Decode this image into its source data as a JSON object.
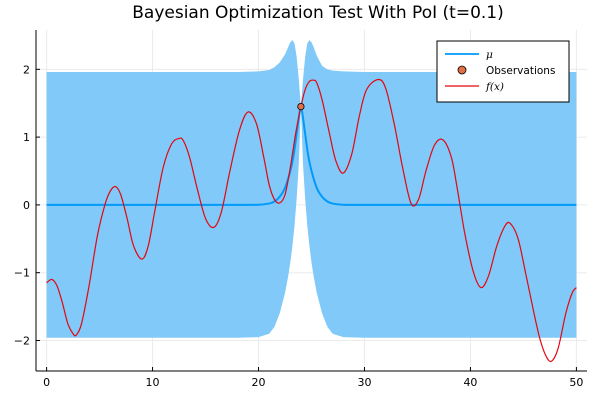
{
  "chart_data": {
    "type": "line",
    "title": "Bayesian Optimization Test With PoI (t=0.1)",
    "xlabel": "",
    "ylabel": "",
    "xlim": [
      -1,
      51
    ],
    "ylim": [
      -2.45,
      2.58
    ],
    "xticks": [
      0,
      10,
      20,
      30,
      40,
      50
    ],
    "yticks": [
      -2,
      -1,
      0,
      1,
      2
    ],
    "x_tick_labels": [
      "0",
      "10",
      "20",
      "30",
      "40",
      "50"
    ],
    "y_tick_labels": [
      "−2",
      "−1",
      "0",
      "1",
      "2"
    ],
    "grid": true,
    "legend_position": "top-right",
    "colors": {
      "band": "#80C9F8",
      "mean": "#009AFA",
      "observation": "#E36F47",
      "f": "#E5060E",
      "axis": "#000000",
      "grid": "#EBEBEB"
    },
    "band": {
      "x": [
        0,
        5,
        10,
        15,
        18,
        20,
        21,
        21.5,
        22,
        22.5,
        22.8,
        23,
        23.2,
        23.4,
        23.6,
        23.8,
        24,
        24.2,
        24.4,
        24.6,
        24.8,
        25,
        25.2,
        25.5,
        26,
        26.5,
        27,
        28,
        30,
        35,
        40,
        45,
        50
      ],
      "upper": [
        1.96,
        1.96,
        1.96,
        1.96,
        1.96,
        1.97,
        1.99,
        2.03,
        2.1,
        2.22,
        2.33,
        2.4,
        2.43,
        2.38,
        2.18,
        1.85,
        1.45,
        1.85,
        2.18,
        2.38,
        2.43,
        2.4,
        2.33,
        2.2,
        2.05,
        2.0,
        1.98,
        1.97,
        1.96,
        1.96,
        1.96,
        1.96,
        1.96
      ],
      "lower": [
        -1.96,
        -1.96,
        -1.96,
        -1.96,
        -1.96,
        -1.95,
        -1.9,
        -1.8,
        -1.6,
        -1.3,
        -1.05,
        -0.85,
        -0.6,
        -0.3,
        0.1,
        0.6,
        1.45,
        0.6,
        0.1,
        -0.3,
        -0.6,
        -0.85,
        -1.05,
        -1.3,
        -1.6,
        -1.8,
        -1.9,
        -1.95,
        -1.96,
        -1.96,
        -1.96,
        -1.96,
        -1.96
      ]
    },
    "series": [
      {
        "name": "μ",
        "x": [
          0,
          5,
          10,
          15,
          18,
          20,
          21,
          21.5,
          22,
          22.5,
          23,
          23.3,
          23.6,
          23.8,
          24,
          24.2,
          24.4,
          24.7,
          25,
          25.5,
          26,
          26.5,
          27,
          28,
          30,
          35,
          40,
          45,
          50
        ],
        "values": [
          0,
          0,
          0,
          0,
          0,
          0.003,
          0.02,
          0.05,
          0.12,
          0.25,
          0.5,
          0.72,
          1.05,
          1.28,
          1.45,
          1.28,
          1.05,
          0.72,
          0.5,
          0.25,
          0.12,
          0.05,
          0.02,
          0.003,
          0,
          0,
          0,
          0,
          0
        ]
      },
      {
        "name": "f(x)",
        "x": [
          0,
          0.5,
          1,
          1.5,
          2,
          2.5,
          2.8,
          3.3,
          4,
          4.8,
          5.5,
          6,
          6.5,
          7,
          7.6,
          8.2,
          9,
          9.6,
          10.2,
          11,
          11.8,
          12.5,
          12.9,
          13.5,
          14.2,
          15,
          15.8,
          16.5,
          17.3,
          18.2,
          19,
          19.8,
          20.5,
          21,
          21.5,
          22,
          22.5,
          23,
          23.5,
          24,
          24.4,
          24.8,
          25.2,
          25.5,
          26,
          26.7,
          27.3,
          28,
          28.8,
          29.5,
          30.2,
          31.3,
          32,
          32.8,
          33.6,
          34.4,
          35.1,
          35.8,
          36.6,
          37.4,
          38.2,
          38.8,
          39.5,
          40.3,
          41,
          41.7,
          42.5,
          43.3,
          43.8,
          44.5,
          45.2,
          46,
          46.6,
          47.2,
          47.7,
          48.3,
          49,
          49.6,
          50
        ],
        "values": [
          -1.15,
          -1.1,
          -1.2,
          -1.45,
          -1.75,
          -1.9,
          -1.92,
          -1.75,
          -1.2,
          -0.45,
          0.0,
          0.2,
          0.27,
          0.15,
          -0.2,
          -0.6,
          -0.8,
          -0.6,
          -0.1,
          0.55,
          0.9,
          0.98,
          0.95,
          0.7,
          0.25,
          -0.2,
          -0.33,
          -0.1,
          0.5,
          1.1,
          1.37,
          1.2,
          0.7,
          0.3,
          0.08,
          0.03,
          0.15,
          0.55,
          1.05,
          1.45,
          1.7,
          1.82,
          1.84,
          1.8,
          1.55,
          1.05,
          0.65,
          0.47,
          0.75,
          1.3,
          1.7,
          1.85,
          1.72,
          1.2,
          0.55,
          0.02,
          0.08,
          0.5,
          0.88,
          0.96,
          0.7,
          0.2,
          -0.45,
          -1.0,
          -1.22,
          -1.05,
          -0.6,
          -0.3,
          -0.28,
          -0.5,
          -1.0,
          -1.6,
          -2.0,
          -2.25,
          -2.3,
          -2.1,
          -1.6,
          -1.3,
          -1.22
        ]
      }
    ],
    "observations": {
      "name": "Observations",
      "points": [
        {
          "x": 24,
          "y": 1.45
        }
      ]
    },
    "legend": [
      {
        "label": "μ",
        "kind": "line",
        "math": true
      },
      {
        "label": "Observations",
        "kind": "marker",
        "math": false
      },
      {
        "label": "f(x)",
        "kind": "line",
        "math": true
      }
    ]
  }
}
